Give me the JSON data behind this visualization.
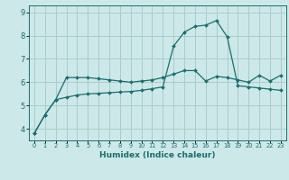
{
  "xlabel": "Humidex (Indice chaleur)",
  "background_color": "#cce8e8",
  "grid_color": "#aacccc",
  "line_color": "#1a6e6e",
  "x_values": [
    0,
    1,
    2,
    3,
    4,
    5,
    6,
    7,
    8,
    9,
    10,
    11,
    12,
    13,
    14,
    15,
    16,
    17,
    18,
    19,
    20,
    21,
    22,
    23
  ],
  "line1_y": [
    3.8,
    4.6,
    5.25,
    6.2,
    6.2,
    6.2,
    6.15,
    6.1,
    6.05,
    6.0,
    6.05,
    6.1,
    6.2,
    6.35,
    6.5,
    6.5,
    6.05,
    6.25,
    6.2,
    6.1,
    6.0,
    6.3,
    6.05,
    6.3
  ],
  "line2_y": [
    3.8,
    4.6,
    5.25,
    5.35,
    5.45,
    5.5,
    5.52,
    5.55,
    5.58,
    5.6,
    5.65,
    5.72,
    5.8,
    7.55,
    8.15,
    8.4,
    8.45,
    8.65,
    7.95,
    5.85,
    5.8,
    5.75,
    5.7,
    5.65
  ],
  "ylim": [
    3.5,
    9.3
  ],
  "yticks": [
    4,
    5,
    6,
    7,
    8,
    9
  ],
  "xlim": [
    -0.5,
    23.5
  ],
  "xlabel_fontsize": 6.5,
  "xlabel_fontweight": "bold",
  "ytick_fontsize": 6,
  "xtick_fontsize": 4.8
}
